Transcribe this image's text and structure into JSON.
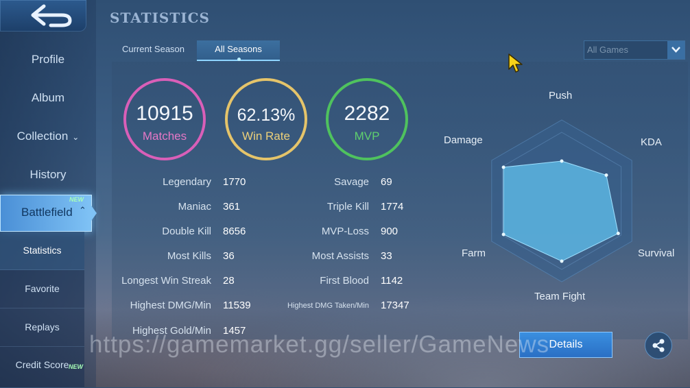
{
  "sidebar": {
    "items": [
      {
        "label": "Profile"
      },
      {
        "label": "Album"
      },
      {
        "label": "Collection"
      },
      {
        "label": "History"
      }
    ],
    "battlefield": {
      "label": "Battlefield",
      "badge": "NEW"
    },
    "sub_items": [
      {
        "label": "Statistics"
      },
      {
        "label": "Favorite"
      },
      {
        "label": "Replays"
      },
      {
        "label": "Credit Score",
        "badge": "NEW"
      }
    ]
  },
  "page_title": "STATISTICS",
  "tabs": [
    {
      "label": "Current Season"
    },
    {
      "label": "All Seasons",
      "active": true
    }
  ],
  "filter": {
    "selected": "All Games"
  },
  "summary": {
    "matches": {
      "value": "10915",
      "label": "Matches",
      "color": "#d95fb8"
    },
    "win_rate": {
      "value": "62.13%",
      "label": "Win Rate",
      "color": "#e5c46a"
    },
    "mvp": {
      "value": "2282",
      "label": "MVP",
      "color": "#4fc25e"
    }
  },
  "stats_left": [
    {
      "label": "Legendary",
      "value": "1770"
    },
    {
      "label": "Maniac",
      "value": "361"
    },
    {
      "label": "Double Kill",
      "value": "8656"
    },
    {
      "label": "Most Kills",
      "value": "36"
    },
    {
      "label": "Longest Win Streak",
      "value": "28"
    },
    {
      "label": "Highest DMG/Min",
      "value": "11539"
    },
    {
      "label": "Highest Gold/Min",
      "value": "1457"
    }
  ],
  "stats_right": [
    {
      "label": "Savage",
      "value": "69"
    },
    {
      "label": "Triple Kill",
      "value": "1774"
    },
    {
      "label": "MVP-Loss",
      "value": "900"
    },
    {
      "label": "Most Assists",
      "value": "33"
    },
    {
      "label": "First Blood",
      "value": "1142"
    },
    {
      "label": "Highest DMG Taken/Min",
      "value": "17347"
    }
  ],
  "radar": {
    "labels": {
      "push": "Push",
      "kda": "KDA",
      "survival": "Survival",
      "team_fight": "Team Fight",
      "farm": "Farm",
      "damage": "Damage"
    },
    "levels": {
      "push": 0.58,
      "kda": 0.75,
      "survival": 0.95,
      "team_fight": 0.88,
      "farm": 0.98,
      "damage": 0.98
    }
  },
  "details_label": "Details",
  "watermark": "https://gamemarket.gg/seller/GameNews"
}
